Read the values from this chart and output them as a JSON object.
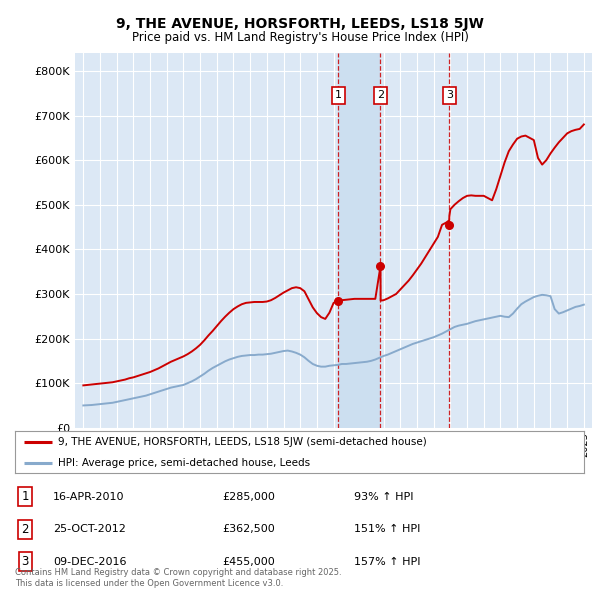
{
  "title": "9, THE AVENUE, HORSFORTH, LEEDS, LS18 5JW",
  "subtitle": "Price paid vs. HM Land Registry's House Price Index (HPI)",
  "legend_label_red": "9, THE AVENUE, HORSFORTH, LEEDS, LS18 5JW (semi-detached house)",
  "legend_label_blue": "HPI: Average price, semi-detached house, Leeds",
  "footnote_line1": "Contains HM Land Registry data © Crown copyright and database right 2025.",
  "footnote_line2": "This data is licensed under the Open Government Licence v3.0.",
  "transactions": [
    {
      "num": 1,
      "date": "16-APR-2010",
      "price": 285000,
      "price_str": "£285,000",
      "pct": "93%",
      "dir": "↑",
      "x_year": 2010.29
    },
    {
      "num": 2,
      "date": "25-OCT-2012",
      "price": 362500,
      "price_str": "£362,500",
      "pct": "151%",
      "dir": "↑",
      "x_year": 2012.81
    },
    {
      "num": 3,
      "date": "09-DEC-2016",
      "price": 455000,
      "price_str": "£455,000",
      "pct": "157%",
      "dir": "↑",
      "x_year": 2016.93
    }
  ],
  "xlim": [
    1994.5,
    2025.5
  ],
  "ylim": [
    0,
    840000
  ],
  "yticks": [
    0,
    100000,
    200000,
    300000,
    400000,
    500000,
    600000,
    700000,
    800000
  ],
  "ytick_labels": [
    "£0",
    "£100K",
    "£200K",
    "£300K",
    "£400K",
    "£500K",
    "£600K",
    "£700K",
    "£800K"
  ],
  "plot_bg_color": "#dce8f5",
  "highlight_color": "#ccdff0",
  "red_color": "#cc0000",
  "blue_color": "#88aacc",
  "hpi_x": [
    1995,
    1995.25,
    1995.5,
    1995.75,
    1996,
    1996.25,
    1996.5,
    1996.75,
    1997,
    1997.25,
    1997.5,
    1997.75,
    1998,
    1998.25,
    1998.5,
    1998.75,
    1999,
    1999.25,
    1999.5,
    1999.75,
    2000,
    2000.25,
    2000.5,
    2000.75,
    2001,
    2001.25,
    2001.5,
    2001.75,
    2002,
    2002.25,
    2002.5,
    2002.75,
    2003,
    2003.25,
    2003.5,
    2003.75,
    2004,
    2004.25,
    2004.5,
    2004.75,
    2005,
    2005.25,
    2005.5,
    2005.75,
    2006,
    2006.25,
    2006.5,
    2006.75,
    2007,
    2007.25,
    2007.5,
    2007.75,
    2008,
    2008.25,
    2008.5,
    2008.75,
    2009,
    2009.25,
    2009.5,
    2009.75,
    2010,
    2010.25,
    2010.5,
    2010.75,
    2011,
    2011.25,
    2011.5,
    2011.75,
    2012,
    2012.25,
    2012.5,
    2012.75,
    2013,
    2013.25,
    2013.5,
    2013.75,
    2014,
    2014.25,
    2014.5,
    2014.75,
    2015,
    2015.25,
    2015.5,
    2015.75,
    2016,
    2016.25,
    2016.5,
    2016.75,
    2017,
    2017.25,
    2017.5,
    2017.75,
    2018,
    2018.25,
    2018.5,
    2018.75,
    2019,
    2019.25,
    2019.5,
    2019.75,
    2020,
    2020.25,
    2020.5,
    2020.75,
    2021,
    2021.25,
    2021.5,
    2021.75,
    2022,
    2022.25,
    2022.5,
    2022.75,
    2023,
    2023.25,
    2023.5,
    2023.75,
    2024,
    2024.25,
    2024.5,
    2024.75,
    2025
  ],
  "hpi_y": [
    50000,
    50500,
    51000,
    52000,
    53000,
    54000,
    55000,
    56000,
    58000,
    60000,
    62000,
    64000,
    66000,
    68000,
    70000,
    72000,
    75000,
    78000,
    81000,
    84000,
    87000,
    90000,
    92000,
    94000,
    96000,
    100000,
    104000,
    109000,
    115000,
    121000,
    128000,
    134000,
    139000,
    144000,
    149000,
    153000,
    156000,
    159000,
    161000,
    162000,
    163000,
    163000,
    164000,
    164000,
    165000,
    166000,
    168000,
    170000,
    172000,
    173000,
    171000,
    168000,
    164000,
    158000,
    150000,
    143000,
    139000,
    137000,
    137000,
    139000,
    140000,
    141000,
    143000,
    143000,
    144000,
    145000,
    146000,
    147000,
    148000,
    150000,
    153000,
    157000,
    161000,
    164000,
    168000,
    172000,
    176000,
    180000,
    184000,
    188000,
    191000,
    194000,
    197000,
    200000,
    203000,
    207000,
    211000,
    216000,
    221000,
    226000,
    229000,
    231000,
    233000,
    236000,
    239000,
    241000,
    243000,
    245000,
    247000,
    249000,
    251000,
    249000,
    248000,
    256000,
    267000,
    277000,
    283000,
    288000,
    293000,
    296000,
    298000,
    297000,
    295000,
    266000,
    256000,
    259000,
    263000,
    267000,
    271000,
    273000,
    276000
  ],
  "prop_x": [
    1995,
    1995.25,
    1995.5,
    1995.75,
    1996,
    1996.25,
    1996.5,
    1996.75,
    1997,
    1997.25,
    1997.5,
    1997.75,
    1998,
    1998.25,
    1998.5,
    1998.75,
    1999,
    1999.25,
    1999.5,
    1999.75,
    2000,
    2000.25,
    2000.5,
    2000.75,
    2001,
    2001.25,
    2001.5,
    2001.75,
    2002,
    2002.25,
    2002.5,
    2002.75,
    2003,
    2003.25,
    2003.5,
    2003.75,
    2004,
    2004.25,
    2004.5,
    2004.75,
    2005,
    2005.25,
    2005.5,
    2005.75,
    2006,
    2006.25,
    2006.5,
    2006.75,
    2007,
    2007.25,
    2007.5,
    2007.75,
    2008,
    2008.25,
    2008.5,
    2008.75,
    2009,
    2009.25,
    2009.5,
    2009.75,
    2010,
    2010.25,
    2010.29,
    2010.5,
    2010.75,
    2011,
    2011.25,
    2011.5,
    2011.75,
    2012,
    2012.25,
    2012.5,
    2012.81,
    2012.82,
    2013,
    2013.25,
    2013.5,
    2013.75,
    2014,
    2014.25,
    2014.5,
    2014.75,
    2015,
    2015.25,
    2015.5,
    2015.75,
    2016,
    2016.25,
    2016.5,
    2016.75,
    2016.93,
    2016.94,
    2017,
    2017.25,
    2017.5,
    2017.75,
    2018,
    2018.25,
    2018.5,
    2018.75,
    2019,
    2019.25,
    2019.5,
    2019.75,
    2020,
    2020.25,
    2020.5,
    2020.75,
    2021,
    2021.25,
    2021.5,
    2021.75,
    2022,
    2022.25,
    2022.5,
    2022.75,
    2023,
    2023.25,
    2023.5,
    2023.75,
    2024,
    2024.25,
    2024.5,
    2024.75,
    2025
  ],
  "prop_y": [
    95000,
    96000,
    97000,
    98000,
    99000,
    100000,
    101000,
    102000,
    104000,
    106000,
    108000,
    111000,
    113000,
    116000,
    119000,
    122000,
    125000,
    129000,
    133000,
    138000,
    143000,
    148000,
    152000,
    156000,
    160000,
    165000,
    171000,
    178000,
    186000,
    196000,
    207000,
    217000,
    228000,
    239000,
    249000,
    258000,
    266000,
    272000,
    277000,
    280000,
    281000,
    282000,
    282000,
    282000,
    283000,
    286000,
    291000,
    297000,
    303000,
    308000,
    313000,
    315000,
    313000,
    306000,
    288000,
    270000,
    257000,
    248000,
    244000,
    258000,
    280000,
    284000,
    285000,
    286000,
    287000,
    288000,
    289000,
    289000,
    289000,
    289000,
    289000,
    289000,
    362500,
    285000,
    286000,
    290000,
    295000,
    300000,
    310000,
    320000,
    330000,
    342000,
    355000,
    368000,
    383000,
    398000,
    413000,
    428000,
    455000,
    460000,
    465000,
    475000,
    490000,
    500000,
    508000,
    515000,
    520000,
    521000,
    520000,
    520000,
    520000,
    515000,
    510000,
    535000,
    565000,
    595000,
    620000,
    635000,
    648000,
    653000,
    655000,
    650000,
    645000,
    605000,
    590000,
    600000,
    615000,
    628000,
    640000,
    650000,
    660000,
    665000,
    668000,
    670000,
    680000
  ]
}
